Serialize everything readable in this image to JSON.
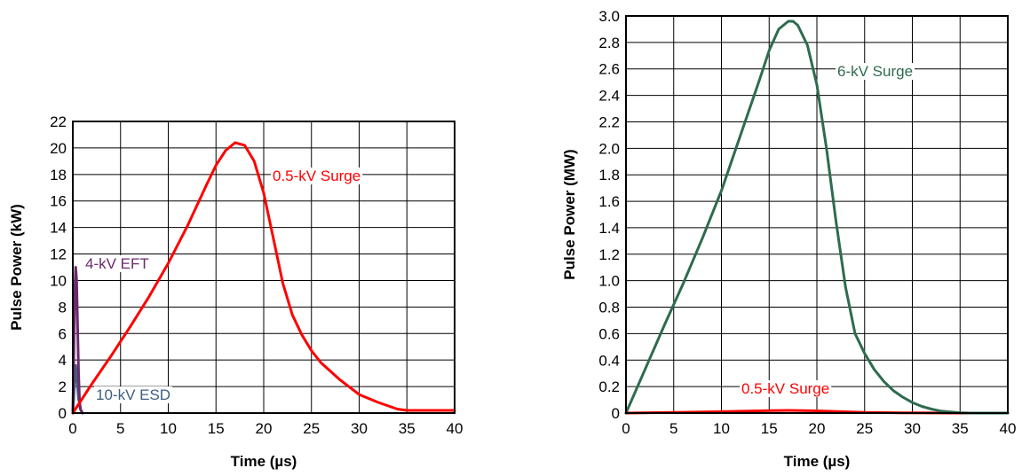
{
  "chart_data": [
    {
      "type": "line",
      "xlabel": "Time (µs)",
      "ylabel": "Pulse Power (kW)",
      "xlim": [
        0,
        40
      ],
      "ylim": [
        0,
        22
      ],
      "xticks": [
        0,
        5,
        10,
        15,
        20,
        25,
        30,
        35,
        40
      ],
      "yticks": [
        0,
        2,
        4,
        6,
        8,
        10,
        12,
        14,
        16,
        18,
        20,
        22
      ],
      "grid": true,
      "series": [
        {
          "name": "0.5-kV Surge",
          "color": "#ff0000",
          "x": [
            0,
            2,
            4,
            6,
            8,
            10,
            12,
            14,
            15,
            16,
            17,
            18,
            19,
            20,
            21,
            22,
            23,
            24,
            25,
            26,
            28,
            30,
            32,
            34,
            35,
            36,
            38,
            40
          ],
          "y": [
            0,
            2.2,
            4.3,
            6.5,
            8.8,
            11.3,
            14.1,
            17.2,
            18.7,
            19.8,
            20.4,
            20.2,
            19.0,
            16.6,
            13.2,
            9.8,
            7.4,
            5.9,
            4.7,
            3.8,
            2.5,
            1.4,
            0.8,
            0.3,
            0.2,
            0.2,
            0.2,
            0.2
          ]
        },
        {
          "name": "4-kV EFT",
          "color": "#6b2a6b",
          "x": [
            0,
            0.1,
            0.2,
            0.3,
            0.4,
            0.5,
            0.6,
            0.7,
            0.8,
            1.0
          ],
          "y": [
            0,
            4,
            9,
            11,
            10,
            6.5,
            3,
            1,
            0.3,
            0
          ]
        },
        {
          "name": "10-kV ESD",
          "color": "#3e5f80",
          "x": [
            0,
            0.1,
            0.2,
            0.3,
            0.45,
            0.6,
            0.8,
            1.0
          ],
          "y": [
            0,
            1.2,
            2.8,
            3.6,
            2.4,
            1.1,
            0.3,
            0
          ]
        }
      ],
      "annotations": [
        "0.5-kV Surge",
        "4-kV EFT",
        "10-kV ESD"
      ]
    },
    {
      "type": "line",
      "xlabel": "Time (µs)",
      "ylabel": "Pulse Power (MW)",
      "xlim": [
        0,
        40
      ],
      "ylim": [
        0,
        3.0
      ],
      "xticks": [
        0,
        5,
        10,
        15,
        20,
        25,
        30,
        35,
        40
      ],
      "yticks": [
        0,
        0.2,
        0.4,
        0.6,
        0.8,
        1.0,
        1.2,
        1.4,
        1.6,
        1.8,
        2.0,
        2.2,
        2.4,
        2.6,
        2.8,
        3.0
      ],
      "ytick_labels": [
        "0",
        "0.2",
        "0.4",
        "0.6",
        "0.8",
        "1.0",
        "1.2",
        "1.4",
        "1.6",
        "1.8",
        "2.0",
        "2.2",
        "2.4",
        "2.6",
        "2.8",
        "3.0"
      ],
      "grid": true,
      "series": [
        {
          "name": "6-kV Surge",
          "color": "#2e6b4f",
          "x": [
            0,
            2,
            4,
            6,
            8,
            10,
            12,
            14,
            15,
            16,
            17,
            17.5,
            18,
            19,
            20,
            21,
            22,
            23,
            24,
            25,
            26,
            27,
            28,
            29,
            30,
            31,
            32,
            33,
            34,
            35,
            36,
            38,
            40
          ],
          "y": [
            0,
            0.33,
            0.66,
            0.98,
            1.32,
            1.68,
            2.1,
            2.52,
            2.74,
            2.9,
            2.96,
            2.96,
            2.93,
            2.78,
            2.48,
            2.0,
            1.45,
            0.95,
            0.6,
            0.45,
            0.33,
            0.24,
            0.17,
            0.12,
            0.08,
            0.05,
            0.03,
            0.015,
            0.008,
            0.003,
            0,
            0,
            0
          ]
        },
        {
          "name": "0.5-kV Surge",
          "color": "#ff0000",
          "x": [
            0,
            5,
            10,
            15,
            17,
            20,
            25,
            30,
            35,
            40
          ],
          "y": [
            0,
            0.005,
            0.011,
            0.018,
            0.02,
            0.017,
            0.005,
            0.0015,
            0.0002,
            0.0002
          ]
        }
      ],
      "annotations": [
        "6-kV Surge",
        "0.5-kV Surge"
      ]
    }
  ]
}
